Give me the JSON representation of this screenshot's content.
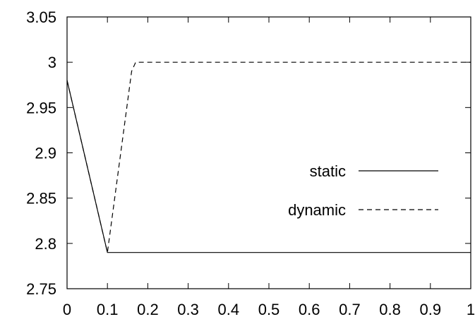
{
  "chart_data": {
    "type": "line",
    "title": "",
    "xlabel": "",
    "ylabel": "",
    "xlim": [
      0,
      1
    ],
    "ylim": [
      2.75,
      3.05
    ],
    "grid": false,
    "legend_position": "center-right",
    "x_ticks": [
      "0",
      "0.1",
      "0.2",
      "0.3",
      "0.4",
      "0.5",
      "0.6",
      "0.7",
      "0.8",
      "0.9",
      "1"
    ],
    "y_ticks": [
      "2.75",
      "2.8",
      "2.85",
      "2.9",
      "2.95",
      "3",
      "3.05"
    ],
    "series": [
      {
        "name": "static",
        "style": "solid",
        "color": "#000000",
        "x": [
          0,
          0.1,
          1
        ],
        "y": [
          2.98,
          2.79,
          2.79
        ]
      },
      {
        "name": "dynamic",
        "style": "dashed",
        "color": "#000000",
        "x": [
          0,
          0.1,
          0.16,
          0.17,
          1
        ],
        "y": [
          2.98,
          2.79,
          2.99,
          3.0,
          3.0
        ]
      }
    ]
  }
}
